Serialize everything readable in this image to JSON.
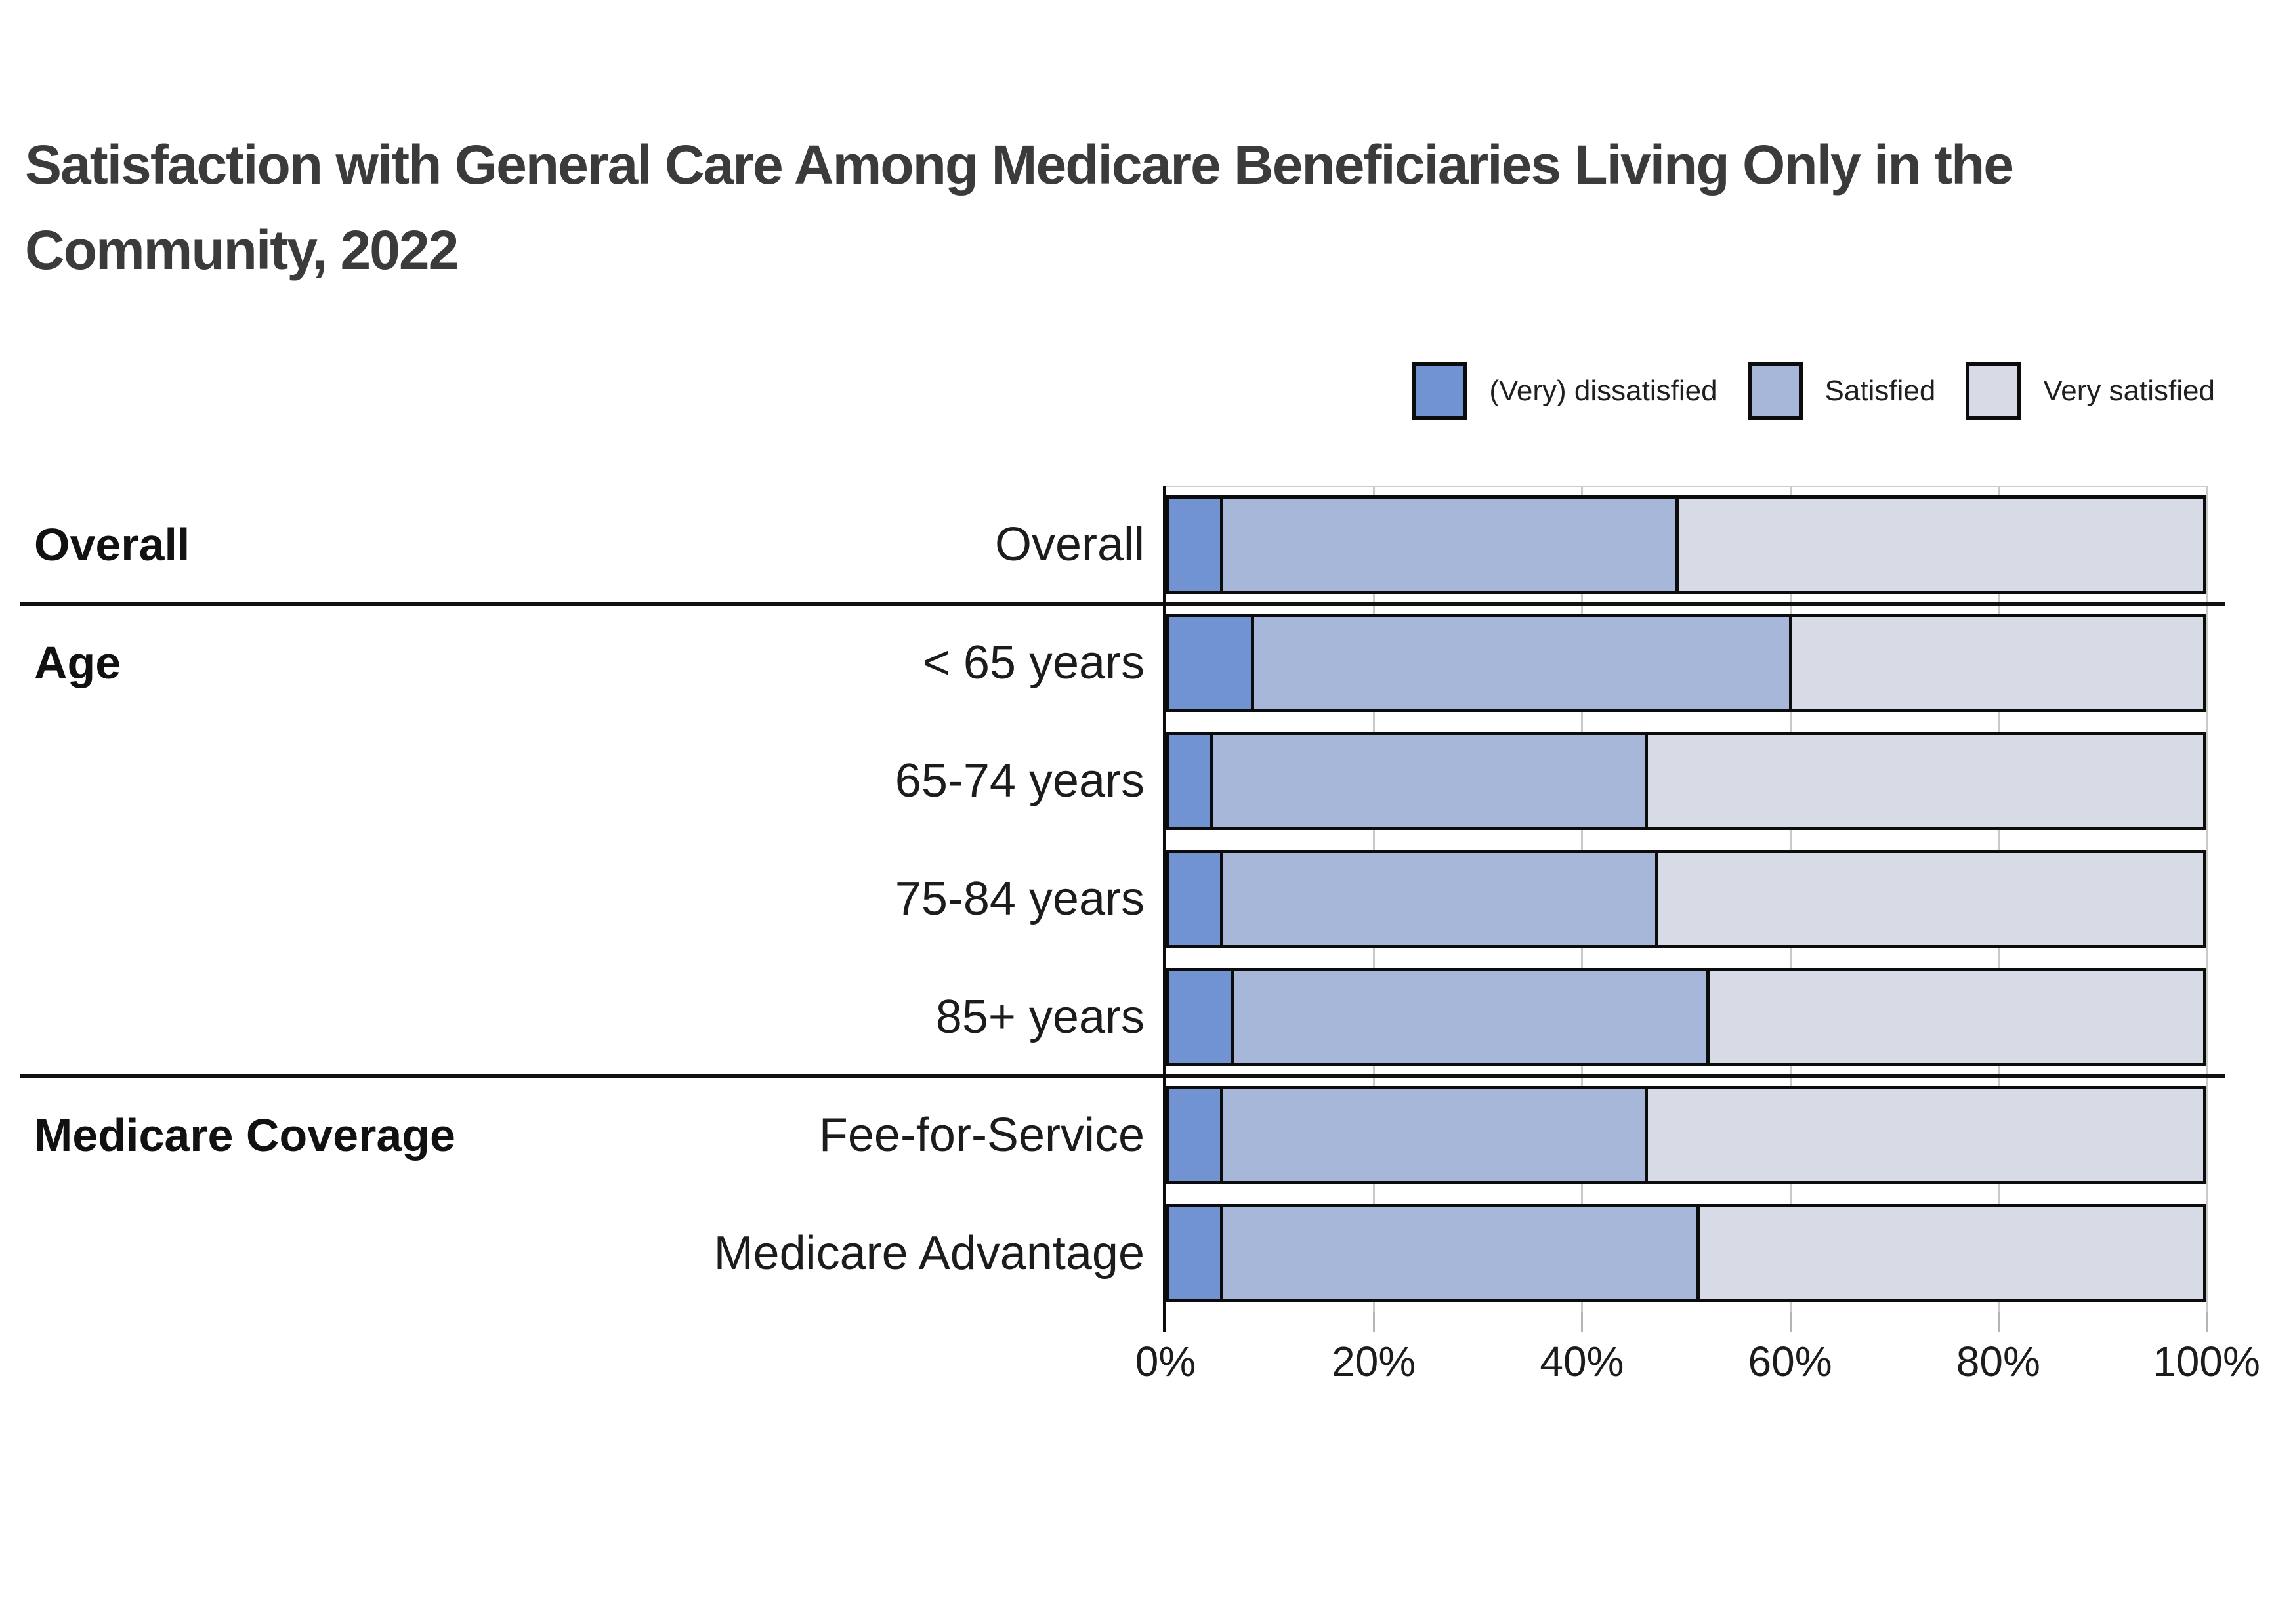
{
  "title": {
    "line1": "Satisfaction with General Care Among Medicare Beneficiaries Living Only in the",
    "line2": "Community, 2022"
  },
  "legend": [
    {
      "label": "(Very) dissatisfied",
      "color": "#7293D1"
    },
    {
      "label": "Satisfied",
      "color": "#A7B7D9"
    },
    {
      "label": "Very satisfied",
      "color": "#D6DBE6"
    }
  ],
  "colors": {
    "dissatisfied": "#7293D1",
    "satisfied": "#A7B7D9",
    "very_satisfied": "#D6DBE6",
    "bar_border": "#0c0c0c",
    "gridline": "#c9c9c9",
    "title_text": "#3b3b3b",
    "label_text": "#1c1c1c"
  },
  "chart_data": {
    "type": "bar",
    "orientation": "horizontal",
    "stacked": true,
    "title": "Satisfaction with General Care Among Medicare Beneficiaries Living Only in the Community, 2022",
    "series_names": [
      "(Very) dissatisfied",
      "Satisfied",
      "Very satisfied"
    ],
    "unit": "percent",
    "xlim": [
      0,
      100
    ],
    "x_tick_values": [
      0,
      20,
      40,
      60,
      80,
      100
    ],
    "x_tick_labels": [
      "0%",
      "20%",
      "40%",
      "60%",
      "80%",
      "100%"
    ],
    "grid": true,
    "legend_position": "top-right",
    "groups": [
      {
        "group": "Overall",
        "rows": [
          {
            "label": "Overall",
            "values": [
              5,
              44,
              51
            ]
          }
        ]
      },
      {
        "group": "Age",
        "rows": [
          {
            "label": "< 65 years",
            "values": [
              8,
              52,
              40
            ]
          },
          {
            "label": "65-74 years",
            "values": [
              4,
              42,
              54
            ]
          },
          {
            "label": "75-84 years",
            "values": [
              5,
              42,
              53
            ]
          },
          {
            "label": "85+ years",
            "values": [
              6,
              46,
              48
            ]
          }
        ]
      },
      {
        "group": "Medicare Coverage",
        "rows": [
          {
            "label": "Fee-for-Service",
            "values": [
              5,
              41,
              54
            ]
          },
          {
            "label": "Medicare Advantage",
            "values": [
              5,
              46,
              49
            ]
          }
        ]
      }
    ]
  }
}
